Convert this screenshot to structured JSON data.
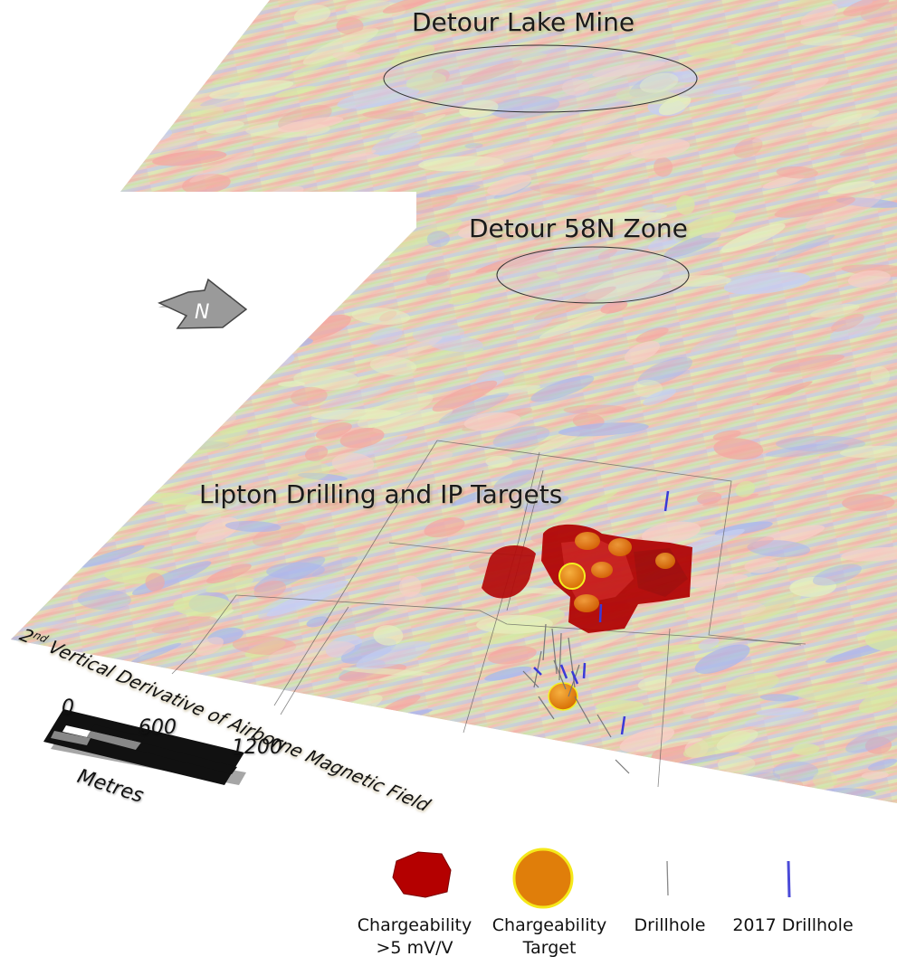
{
  "labels": {
    "mine": "Detour Lake Mine",
    "zone_58n": "Detour 58N Zone",
    "lipton": "Lipton Drilling and IP Targets",
    "derivative": "2nd Vertical Derivative of Airborne Magnetic Field",
    "north": "N"
  },
  "scale_bar": {
    "ticks": [
      "0",
      "600",
      "1200"
    ],
    "unit": "Metres"
  },
  "legend": [
    {
      "name": "chargeability-volume",
      "label": "Chargeability >5 mV/V",
      "color": "#b00000"
    },
    {
      "name": "chargeability-target",
      "label": "Chargeability Target",
      "color": "#e88a10"
    },
    {
      "name": "drillhole",
      "label": "Drillhole",
      "color": "#777777"
    },
    {
      "name": "drillhole-2017",
      "label": "2017 Drillhole",
      "color": "#4040d0"
    }
  ],
  "colors": {
    "background": "#ffffff",
    "mag_high": "#f4a6a0",
    "mag_mid": "#d8eaa0",
    "mag_low": "#a9b6ee"
  }
}
